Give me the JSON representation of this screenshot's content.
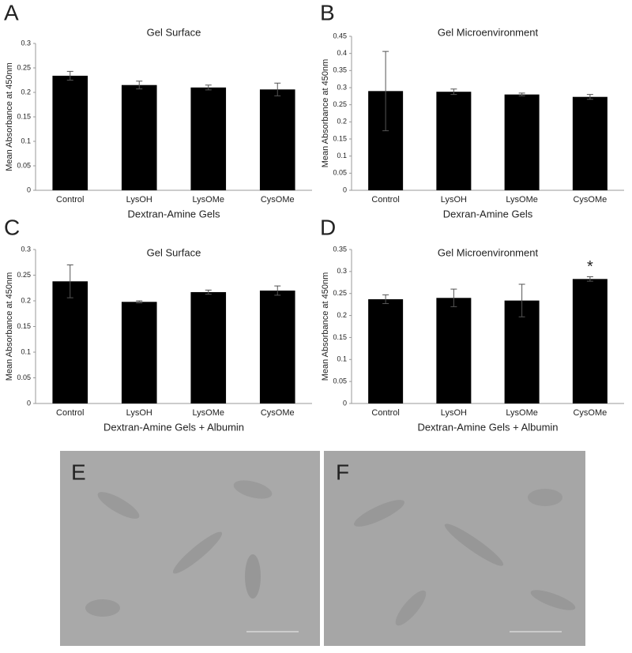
{
  "chart_data": [
    {
      "panel": "A",
      "type": "bar",
      "title": "Gel Surface",
      "x_label": "Dextran-Amine Gels",
      "y_label": "Mean Absorbance at 450nm",
      "categories": [
        "Control",
        "LysOH",
        "LysOMe",
        "CysOMe"
      ],
      "values": [
        0.234,
        0.215,
        0.21,
        0.206
      ],
      "errors": [
        0.009,
        0.008,
        0.005,
        0.013
      ],
      "color": "#000000",
      "ylim": [
        0,
        0.3
      ],
      "yticks": [
        0,
        0.05,
        0.1,
        0.15,
        0.2,
        0.25,
        0.3
      ]
    },
    {
      "panel": "B",
      "type": "bar",
      "title": "Gel Microenvironment",
      "x_label": "Dexran-Amine Gels",
      "y_label": "Mean Absorbance at 450nm",
      "categories": [
        "Control",
        "LysOH",
        "LysOMe",
        "CysOMe"
      ],
      "values": [
        0.29,
        0.288,
        0.28,
        0.273
      ],
      "errors": [
        0.116,
        0.008,
        0.004,
        0.007
      ],
      "color": "#000000",
      "ylim": [
        0,
        0.45
      ],
      "yticks": [
        0,
        0.05,
        0.1,
        0.15,
        0.2,
        0.25,
        0.3,
        0.35,
        0.4,
        0.45
      ]
    },
    {
      "panel": "C",
      "type": "bar",
      "title": "Gel Surface",
      "x_label": "Dextran-Amine Gels + Albumin",
      "y_label": "Mean Absorbance at 450nm",
      "categories": [
        "Control",
        "LysOH",
        "LysOMe",
        "CysOMe"
      ],
      "values": [
        0.238,
        0.198,
        0.217,
        0.22
      ],
      "errors": [
        0.032,
        0.002,
        0.004,
        0.009
      ],
      "color": "#000000",
      "ylim": [
        0,
        0.3
      ],
      "yticks": [
        0,
        0.05,
        0.1,
        0.15,
        0.2,
        0.25,
        0.3
      ]
    },
    {
      "panel": "D",
      "type": "bar",
      "title": "Gel Microenvironment",
      "x_label": "Dextran-Amine Gels + Albumin",
      "y_label": "Mean Absorbance at 450nm",
      "categories": [
        "Control",
        "LysOH",
        "LysOMe",
        "CysOMe"
      ],
      "values": [
        0.237,
        0.24,
        0.234,
        0.283
      ],
      "errors": [
        0.01,
        0.02,
        0.037,
        0.005
      ],
      "color": "#000000",
      "ylim": [
        0,
        0.35
      ],
      "yticks": [
        0,
        0.05,
        0.1,
        0.15,
        0.2,
        0.25,
        0.3,
        0.35
      ],
      "annotations": [
        {
          "text": "*",
          "x": "CysOMe"
        }
      ]
    }
  ],
  "image_panels": [
    "E",
    "F"
  ]
}
